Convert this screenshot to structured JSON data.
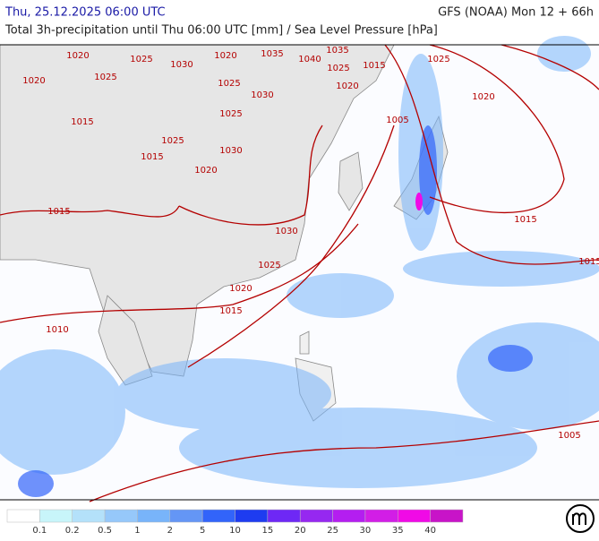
{
  "header": {
    "valid_time": "Thu, 25.12.2025 06:00 UTC",
    "model": "GFS (NOAA) Mon 12 + 66h",
    "subtitle": "Total 3h-precipitation until Thu 06:00 UTC [mm] / Sea Level Pressure [hPa]"
  },
  "isobar_labels": [
    "1020",
    "1025",
    "1030",
    "1020",
    "1035",
    "1040",
    "1035",
    "1025",
    "1015",
    "1025",
    "1020",
    "1025",
    "1025",
    "1030",
    "1020",
    "1020",
    "1025",
    "1005",
    "1015",
    "1025",
    "1030",
    "1015",
    "1020",
    "1015",
    "1030",
    "1015",
    "1025",
    "1020",
    "1015",
    "1010",
    "1015",
    "1005"
  ],
  "legend": {
    "labels": [
      0.1,
      0.2,
      0.5,
      1,
      2,
      5,
      10,
      15,
      20,
      25,
      30,
      35,
      40
    ],
    "colors": [
      "#ffffff",
      "#c8f5fa",
      "#b4e1fa",
      "#96c8fa",
      "#78b4fa",
      "#6496f5",
      "#3264fa",
      "#1e3cf0",
      "#6e28f5",
      "#9628f0",
      "#b41ef0",
      "#d21ee6",
      "#f00ae6",
      "#c814c8"
    ]
  }
}
